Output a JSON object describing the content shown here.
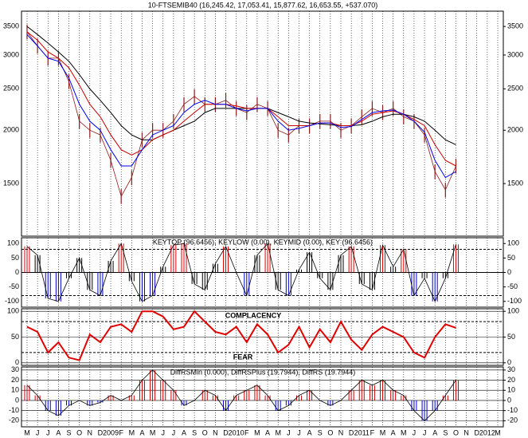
{
  "chart_data": [
    {
      "type": "price",
      "title": "10-FTSEMIB40 (16,245.42, 17,053.41, 15,877.62, 16,653.55, +537.070)",
      "log_scale": true,
      "ylim": [
        1130,
        3800
      ],
      "yticks": [
        1500,
        2000,
        2500,
        3000,
        3500
      ],
      "series": [
        {
          "color": "#8b1a1a",
          "values": [
            3400,
            3150,
            2950,
            2950,
            2600,
            2100,
            2000,
            1950,
            1700,
            1400,
            1550,
            1900,
            2000,
            2000,
            2100,
            2300,
            2400,
            2300,
            2300,
            2350,
            2250,
            2200,
            2300,
            2250,
            2000,
            1950,
            2050,
            2050,
            2100,
            2100,
            2000,
            2050,
            2150,
            2250,
            2200,
            2250,
            2150,
            2100,
            1950,
            1600,
            1450,
            1650,
            null,
            null,
            null,
            null
          ]
        },
        {
          "color": "#000000",
          "values": [
            3500,
            3350,
            3200,
            3050,
            2900,
            2700,
            2500,
            2350,
            2200,
            2050,
            1950,
            1900,
            1900,
            1950,
            2000,
            2050,
            2100,
            2200,
            2250,
            2250,
            2250,
            2250,
            2250,
            2250,
            2200,
            2150,
            2100,
            2080,
            2070,
            2060,
            2050,
            2050,
            2060,
            2100,
            2150,
            2180,
            2180,
            2150,
            2100,
            2000,
            1900,
            1850,
            null,
            null,
            null,
            null
          ]
        },
        {
          "color": "#cc0000",
          "values": [
            3400,
            3250,
            3050,
            2950,
            2800,
            2550,
            2300,
            2150,
            1950,
            1800,
            1750,
            1800,
            1900,
            1950,
            2000,
            2100,
            2200,
            2300,
            2300,
            2300,
            2280,
            2250,
            2250,
            2250,
            2150,
            2050,
            2050,
            2050,
            2080,
            2080,
            2050,
            2050,
            2100,
            2180,
            2200,
            2220,
            2180,
            2120,
            2050,
            1850,
            1700,
            1650,
            null,
            null,
            null,
            null
          ]
        },
        {
          "color": "#0000ee",
          "values": [
            3350,
            3150,
            2950,
            2900,
            2650,
            2300,
            2100,
            2000,
            1800,
            1650,
            1650,
            1800,
            1950,
            2000,
            2050,
            2200,
            2300,
            2350,
            2300,
            2300,
            2250,
            2220,
            2250,
            2250,
            2100,
            2000,
            2020,
            2050,
            2080,
            2080,
            2030,
            2040,
            2120,
            2200,
            2220,
            2230,
            2180,
            2100,
            1980,
            1700,
            1550,
            1600,
            null,
            null,
            null,
            null
          ]
        }
      ]
    },
    {
      "type": "oscillator",
      "title": "KEYTOP (96.6456), KEYLOW (0.00), KEYMID (0.00), KEY (96.6456)",
      "ylim": [
        -120,
        120
      ],
      "yticks": [
        100,
        50,
        0,
        -50,
        -100
      ],
      "levels": [
        80,
        -80
      ],
      "color": "#000000",
      "high_color": "#e00000",
      "low_color": "#0000cc",
      "values": [
        90,
        60,
        -90,
        -100,
        -20,
        50,
        -60,
        -80,
        40,
        100,
        -30,
        -100,
        -80,
        20,
        95,
        100,
        -40,
        -60,
        30,
        90,
        0,
        -80,
        60,
        100,
        -60,
        -80,
        10,
        70,
        -20,
        -60,
        60,
        90,
        -40,
        -60,
        95,
        20,
        80,
        -80,
        -20,
        -100,
        -20,
        97,
        null,
        null,
        null,
        null
      ]
    },
    {
      "type": "level_line",
      "annotations": [
        "COMPLACENCY",
        "FEAR"
      ],
      "grid": true,
      "ylim": [
        -5,
        105
      ],
      "yticks": [
        100,
        50,
        0
      ],
      "levels": [
        80,
        20
      ],
      "color": "#e00000",
      "values": [
        70,
        60,
        20,
        40,
        10,
        5,
        55,
        40,
        70,
        75,
        60,
        100,
        100,
        90,
        65,
        70,
        100,
        80,
        60,
        55,
        70,
        40,
        75,
        55,
        20,
        35,
        70,
        30,
        65,
        40,
        80,
        45,
        25,
        55,
        70,
        60,
        50,
        20,
        10,
        50,
        75,
        68,
        null,
        null,
        null,
        null
      ]
    },
    {
      "type": "histogram",
      "title": "DiffRSMin (0.000), DiffRSPlus (19.7944), DiffRS (19.7944)",
      "grid": true,
      "ylim": [
        -26,
        33
      ],
      "yticks": [
        30,
        20,
        10,
        0,
        -10,
        -20
      ],
      "color": "#000000",
      "pos_color": "#cc0000",
      "neg_color": "#0000cc",
      "categories": [
        "M",
        "J",
        "J",
        "A",
        "S",
        "O",
        "N",
        "D",
        "2009",
        "F",
        "M",
        "A",
        "M",
        "J",
        "J",
        "A",
        "S",
        "O",
        "N",
        "D",
        "2010",
        "F",
        "M",
        "A",
        "M",
        "J",
        "J",
        "A",
        "S",
        "O",
        "N",
        "D",
        "2011",
        "F",
        "M",
        "A",
        "M",
        "J",
        "J",
        "A",
        "S",
        "O",
        "N",
        "D",
        "2012",
        "M"
      ],
      "values": [
        15,
        5,
        -10,
        -15,
        -5,
        0,
        -5,
        -2,
        5,
        0,
        5,
        20,
        30,
        20,
        10,
        -5,
        0,
        10,
        5,
        -10,
        5,
        10,
        15,
        5,
        -10,
        -5,
        5,
        10,
        0,
        -5,
        0,
        10,
        20,
        15,
        20,
        10,
        5,
        -10,
        -20,
        -10,
        5,
        20,
        null,
        null,
        null,
        null
      ]
    }
  ]
}
